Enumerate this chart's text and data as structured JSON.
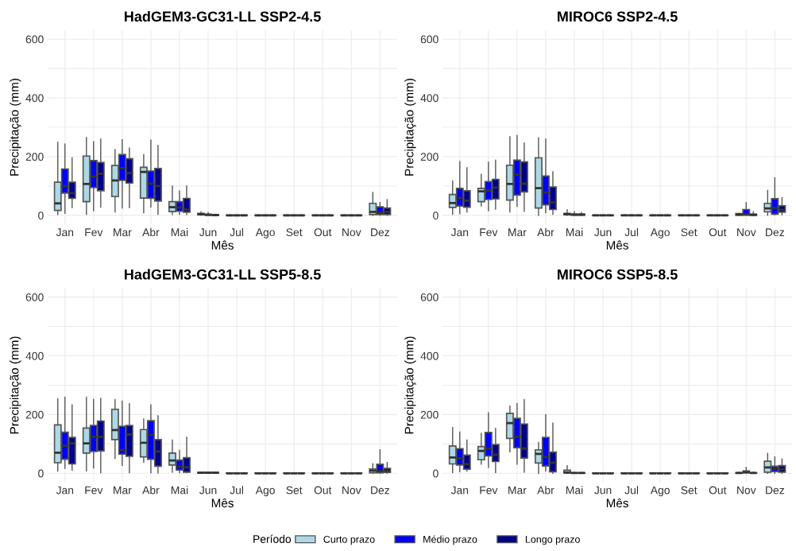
{
  "chart_data": [
    {
      "type": "box",
      "title": "HadGEM3-GC31-LL SSP2-4.5",
      "xlabel": "Mês",
      "ylabel": "Precipitação (mm)",
      "categories": [
        "Jan",
        "Fev",
        "Mar",
        "Abr",
        "Mai",
        "Jun",
        "Jul",
        "Ago",
        "Set",
        "Out",
        "Nov",
        "Dez"
      ],
      "ylim": [
        -30,
        630
      ],
      "yticks": [
        0,
        {
          "value": 100,
          "label": null
        },
        200,
        {
          "value": 300,
          "label": null
        },
        400,
        {
          "value": 500,
          "label": null
        },
        600
      ],
      "grid": true,
      "legend": "bottom",
      "legend_title": "Período",
      "series": [
        {
          "name": "Curto prazo",
          "color": "#add8e6",
          "boxes": [
            {
              "low": 3,
              "q1": 17,
              "median": 41,
              "q3": 113,
              "high": 249
            },
            {
              "low": 4,
              "q1": 47,
              "median": 107,
              "q3": 202,
              "high": 265
            },
            {
              "low": 12,
              "q1": 64,
              "median": 119,
              "q3": 170,
              "high": 224
            },
            {
              "low": 9,
              "q1": 59,
              "median": 148,
              "q3": 164,
              "high": 207
            },
            {
              "low": 3,
              "q1": 13,
              "median": 28,
              "q3": 47,
              "high": 100
            },
            {
              "low": 0,
              "q1": 2,
              "median": 4,
              "q3": 7,
              "high": 12
            },
            {
              "low": 0,
              "q1": 0,
              "median": 0,
              "q3": 1,
              "high": 2
            },
            {
              "low": 0,
              "q1": 0,
              "median": 0,
              "q3": 1,
              "high": 2
            },
            {
              "low": 0,
              "q1": 0,
              "median": 0,
              "q3": 1,
              "high": 2
            },
            {
              "low": 0,
              "q1": 0,
              "median": 0,
              "q3": 1,
              "high": 2
            },
            {
              "low": 0,
              "q1": 0,
              "median": 0,
              "q3": 1,
              "high": 2
            },
            {
              "low": 0,
              "q1": 3,
              "median": 12,
              "q3": 41,
              "high": 78
            }
          ]
        },
        {
          "name": "Médio prazo",
          "color": "#0000ff",
          "boxes": [
            {
              "low": 7,
              "q1": 76,
              "median": 100,
              "q3": 158,
              "high": 243
            },
            {
              "low": 16,
              "q1": 95,
              "median": 132,
              "q3": 187,
              "high": 251
            },
            {
              "low": 25,
              "q1": 119,
              "median": 161,
              "q3": 207,
              "high": 258
            },
            {
              "low": 29,
              "q1": 58,
              "median": 108,
              "q3": 151,
              "high": 256
            },
            {
              "low": 4,
              "q1": 14,
              "median": 27,
              "q3": 47,
              "high": 83
            },
            {
              "low": 0,
              "q1": 1,
              "median": 2,
              "q3": 4,
              "high": 10
            },
            {
              "low": 0,
              "q1": 0,
              "median": 0,
              "q3": 1,
              "high": 2
            },
            {
              "low": 0,
              "q1": 0,
              "median": 0,
              "q3": 1,
              "high": 2
            },
            {
              "low": 0,
              "q1": 0,
              "median": 0,
              "q3": 1,
              "high": 2
            },
            {
              "low": 0,
              "q1": 0,
              "median": 0,
              "q3": 1,
              "high": 2
            },
            {
              "low": 0,
              "q1": 0,
              "median": 0,
              "q3": 1,
              "high": 2
            },
            {
              "low": 0,
              "q1": 3,
              "median": 9,
              "q3": 29,
              "high": 44
            }
          ]
        },
        {
          "name": "Longo prazo",
          "color": "#00008b",
          "boxes": [
            {
              "low": 27,
              "q1": 58,
              "median": 76,
              "q3": 113,
              "high": 196
            },
            {
              "low": 28,
              "q1": 84,
              "median": 142,
              "q3": 180,
              "high": 260
            },
            {
              "low": 27,
              "q1": 110,
              "median": 144,
              "q3": 193,
              "high": 229
            },
            {
              "low": 4,
              "q1": 49,
              "median": 100,
              "q3": 160,
              "high": 238
            },
            {
              "low": 3,
              "q1": 11,
              "median": 20,
              "q3": 58,
              "high": 100
            },
            {
              "low": 0,
              "q1": 0,
              "median": 1,
              "q3": 3,
              "high": 4
            },
            {
              "low": 0,
              "q1": 0,
              "median": 0,
              "q3": 1,
              "high": 2
            },
            {
              "low": 0,
              "q1": 0,
              "median": 0,
              "q3": 1,
              "high": 2
            },
            {
              "low": 0,
              "q1": 0,
              "median": 0,
              "q3": 1,
              "high": 2
            },
            {
              "low": 0,
              "q1": 0,
              "median": 0,
              "q3": 1,
              "high": 2
            },
            {
              "low": 0,
              "q1": 0,
              "median": 0,
              "q3": 1,
              "high": 2
            },
            {
              "low": 0,
              "q1": 3,
              "median": 12,
              "q3": 25,
              "high": 54
            }
          ]
        }
      ]
    },
    {
      "type": "box",
      "title": "MIROC6 SSP2-4.5",
      "xlabel": "Mês",
      "ylabel": "Precipitação (mm)",
      "categories": [
        "Jan",
        "Fev",
        "Mar",
        "Abr",
        "Mai",
        "Jun",
        "Jul",
        "Ago",
        "Set",
        "Out",
        "Nov",
        "Dez"
      ],
      "ylim": [
        -30,
        630
      ],
      "yticks": [
        0,
        {
          "value": 100,
          "label": null
        },
        200,
        {
          "value": 300,
          "label": null
        },
        400,
        {
          "value": 500,
          "label": null
        },
        600
      ],
      "grid": true,
      "series": [
        {
          "color": "#add8e6",
          "boxes": [
            {
              "low": 4,
              "q1": 27,
              "median": 42,
              "q3": 71,
              "high": 117
            },
            {
              "low": 32,
              "q1": 47,
              "median": 82,
              "q3": 92,
              "high": 140
            },
            {
              "low": 12,
              "q1": 52,
              "median": 107,
              "q3": 171,
              "high": 268
            },
            {
              "low": 0,
              "q1": 25,
              "median": 93,
              "q3": 196,
              "high": 264
            },
            {
              "low": 0,
              "q1": 2,
              "median": 4,
              "q3": 7,
              "high": 19
            },
            {
              "low": 0,
              "q1": 0,
              "median": 0,
              "q3": 1,
              "high": 2
            },
            {
              "low": 0,
              "q1": 0,
              "median": 0,
              "q3": 1,
              "high": 2
            },
            {
              "low": 0,
              "q1": 0,
              "median": 0,
              "q3": 1,
              "high": 2
            },
            {
              "low": 0,
              "q1": 0,
              "median": 0,
              "q3": 1,
              "high": 2
            },
            {
              "low": 0,
              "q1": 0,
              "median": 0,
              "q3": 1,
              "high": 2
            },
            {
              "low": 0,
              "q1": 1,
              "median": 3,
              "q3": 6,
              "high": 7
            },
            {
              "low": 0,
              "q1": 12,
              "median": 24,
              "q3": 41,
              "high": 85
            }
          ]
        },
        {
          "color": "#0000ff",
          "boxes": [
            {
              "low": 6,
              "q1": 32,
              "median": 59,
              "q3": 92,
              "high": 183
            },
            {
              "low": 16,
              "q1": 54,
              "median": 85,
              "q3": 115,
              "high": 181
            },
            {
              "low": 31,
              "q1": 69,
              "median": 139,
              "q3": 188,
              "high": 272
            },
            {
              "low": 9,
              "q1": 36,
              "median": 78,
              "q3": 134,
              "high": 260
            },
            {
              "low": 0,
              "q1": 1,
              "median": 3,
              "q3": 4,
              "high": 13
            },
            {
              "low": 0,
              "q1": 0,
              "median": 0,
              "q3": 1,
              "high": 2
            },
            {
              "low": 0,
              "q1": 0,
              "median": 0,
              "q3": 1,
              "high": 2
            },
            {
              "low": 0,
              "q1": 0,
              "median": 0,
              "q3": 1,
              "high": 2
            },
            {
              "low": 0,
              "q1": 0,
              "median": 0,
              "q3": 1,
              "high": 2
            },
            {
              "low": 0,
              "q1": 0,
              "median": 0,
              "q3": 1,
              "high": 2
            },
            {
              "low": 0,
              "q1": 1,
              "median": 4,
              "q3": 20,
              "high": 43
            },
            {
              "low": 2,
              "q1": 4,
              "median": 26,
              "q3": 57,
              "high": 128
            }
          ]
        },
        {
          "color": "#00008b",
          "boxes": [
            {
              "low": 12,
              "q1": 28,
              "median": 50,
              "q3": 84,
              "high": 162
            },
            {
              "low": 21,
              "q1": 56,
              "median": 95,
              "q3": 123,
              "high": 188
            },
            {
              "low": 14,
              "q1": 80,
              "median": 108,
              "q3": 182,
              "high": 246
            },
            {
              "low": 4,
              "q1": 20,
              "median": 44,
              "q3": 97,
              "high": 149
            },
            {
              "low": 0,
              "q1": 1,
              "median": 3,
              "q3": 4,
              "high": 10
            },
            {
              "low": 0,
              "q1": 0,
              "median": 0,
              "q3": 1,
              "high": 2
            },
            {
              "low": 0,
              "q1": 0,
              "median": 0,
              "q3": 1,
              "high": 2
            },
            {
              "low": 0,
              "q1": 0,
              "median": 0,
              "q3": 1,
              "high": 2
            },
            {
              "low": 0,
              "q1": 0,
              "median": 0,
              "q3": 1,
              "high": 2
            },
            {
              "low": 0,
              "q1": 0,
              "median": 0,
              "q3": 1,
              "high": 2
            },
            {
              "low": 0,
              "q1": 0,
              "median": 2,
              "q3": 4,
              "high": 13
            },
            {
              "low": 2,
              "q1": 11,
              "median": 19,
              "q3": 33,
              "high": 60
            }
          ]
        }
      ]
    },
    {
      "type": "box",
      "title": "HadGEM3-GC31-LL SSP5-8.5",
      "xlabel": "Mês",
      "ylabel": "Precipitação (mm)",
      "categories": [
        "Jan",
        "Fev",
        "Mar",
        "Abr",
        "Mai",
        "Jun",
        "Jul",
        "Ago",
        "Set",
        "Out",
        "Nov",
        "Dez"
      ],
      "ylim": [
        -30,
        630
      ],
      "yticks": [
        0,
        {
          "value": 100,
          "label": null
        },
        200,
        {
          "value": 300,
          "label": null
        },
        400,
        {
          "value": 500,
          "label": null
        },
        600
      ],
      "grid": true,
      "series": [
        {
          "color": "#add8e6",
          "boxes": [
            {
              "low": 8,
              "q1": 36,
              "median": 70,
              "q3": 165,
              "high": 253
            },
            {
              "low": 8,
              "q1": 69,
              "median": 102,
              "q3": 154,
              "high": 259
            },
            {
              "low": 51,
              "q1": 115,
              "median": 147,
              "q3": 218,
              "high": 251
            },
            {
              "low": 38,
              "q1": 56,
              "median": 104,
              "q3": 149,
              "high": 185
            },
            {
              "low": 4,
              "q1": 28,
              "median": 44,
              "q3": 69,
              "high": 113
            },
            {
              "low": 0,
              "q1": 1,
              "median": 2,
              "q3": 3,
              "high": 4
            },
            {
              "low": 0,
              "q1": 0,
              "median": 0,
              "q3": 1,
              "high": 2
            },
            {
              "low": 0,
              "q1": 0,
              "median": 0,
              "q3": 1,
              "high": 2
            },
            {
              "low": 0,
              "q1": 0,
              "median": 0,
              "q3": 1,
              "high": 2
            },
            {
              "low": 0,
              "q1": 0,
              "median": 0,
              "q3": 1,
              "high": 2
            },
            {
              "low": 0,
              "q1": 0,
              "median": 0,
              "q3": 1,
              "high": 2
            },
            {
              "low": 0,
              "q1": 2,
              "median": 9,
              "q3": 15,
              "high": 33
            }
          ]
        },
        {
          "color": "#0000ff",
          "boxes": [
            {
              "low": 17,
              "q1": 48,
              "median": 94,
              "q3": 140,
              "high": 259
            },
            {
              "low": 18,
              "q1": 74,
              "median": 124,
              "q3": 163,
              "high": 251
            },
            {
              "low": 27,
              "q1": 65,
              "median": 79,
              "q3": 160,
              "high": 246
            },
            {
              "low": 2,
              "q1": 48,
              "median": 131,
              "q3": 179,
              "high": 233
            },
            {
              "low": 2,
              "q1": 11,
              "median": 23,
              "q3": 45,
              "high": 78
            },
            {
              "low": 0,
              "q1": 1,
              "median": 2,
              "q3": 3,
              "high": 4
            },
            {
              "low": 0,
              "q1": 0,
              "median": 0,
              "q3": 1,
              "high": 2
            },
            {
              "low": 0,
              "q1": 0,
              "median": 0,
              "q3": 1,
              "high": 2
            },
            {
              "low": 0,
              "q1": 0,
              "median": 0,
              "q3": 1,
              "high": 2
            },
            {
              "low": 0,
              "q1": 0,
              "median": 0,
              "q3": 1,
              "high": 2
            },
            {
              "low": 0,
              "q1": 0,
              "median": 0,
              "q3": 1,
              "high": 2
            },
            {
              "low": 0,
              "q1": 2,
              "median": 7,
              "q3": 31,
              "high": 80
            }
          ]
        },
        {
          "color": "#00008b",
          "boxes": [
            {
              "low": 11,
              "q1": 32,
              "median": 102,
              "q3": 122,
              "high": 233
            },
            {
              "low": 2,
              "q1": 76,
              "median": 124,
              "q3": 178,
              "high": 255
            },
            {
              "low": 2,
              "q1": 58,
              "median": 132,
              "q3": 163,
              "high": 237
            },
            {
              "low": 1,
              "q1": 24,
              "median": 74,
              "q3": 115,
              "high": 196
            },
            {
              "low": 2,
              "q1": 4,
              "median": 21,
              "q3": 53,
              "high": 123
            },
            {
              "low": 0,
              "q1": 1,
              "median": 2,
              "q3": 3,
              "high": 4
            },
            {
              "low": 0,
              "q1": 0,
              "median": 0,
              "q3": 1,
              "high": 2
            },
            {
              "low": 0,
              "q1": 0,
              "median": 0,
              "q3": 1,
              "high": 2
            },
            {
              "low": 0,
              "q1": 0,
              "median": 0,
              "q3": 1,
              "high": 2
            },
            {
              "low": 0,
              "q1": 0,
              "median": 0,
              "q3": 1,
              "high": 2
            },
            {
              "low": 0,
              "q1": 0,
              "median": 0,
              "q3": 1,
              "high": 2
            },
            {
              "low": 0,
              "q1": 3,
              "median": 9,
              "q3": 17,
              "high": 37
            }
          ]
        }
      ]
    },
    {
      "type": "box",
      "title": "MIROC6 SSP5-8.5",
      "xlabel": "Mês",
      "ylabel": "Precipitação (mm)",
      "categories": [
        "Jan",
        "Fev",
        "Mar",
        "Abr",
        "Mai",
        "Jun",
        "Jul",
        "Ago",
        "Set",
        "Out",
        "Nov",
        "Dez"
      ],
      "ylim": [
        -30,
        630
      ],
      "yticks": [
        0,
        {
          "value": 100,
          "label": null
        },
        200,
        {
          "value": 300,
          "label": null
        },
        400,
        {
          "value": 500,
          "label": null
        },
        600
      ],
      "grid": true,
      "series": [
        {
          "color": "#add8e6",
          "boxes": [
            {
              "low": 3,
              "q1": 32,
              "median": 54,
              "q3": 93,
              "high": 156
            },
            {
              "low": 31,
              "q1": 46,
              "median": 76,
              "q3": 91,
              "high": 136
            },
            {
              "low": 73,
              "q1": 119,
              "median": 171,
              "q3": 204,
              "high": 229
            },
            {
              "low": 0,
              "q1": 35,
              "median": 66,
              "q3": 80,
              "high": 105
            },
            {
              "low": 0,
              "q1": 1,
              "median": 3,
              "q3": 11,
              "high": 26
            },
            {
              "low": 0,
              "q1": 0,
              "median": 0,
              "q3": 1,
              "high": 2
            },
            {
              "low": 0,
              "q1": 0,
              "median": 0,
              "q3": 1,
              "high": 2
            },
            {
              "low": 0,
              "q1": 0,
              "median": 0,
              "q3": 1,
              "high": 2
            },
            {
              "low": 0,
              "q1": 0,
              "median": 0,
              "q3": 1,
              "high": 2
            },
            {
              "low": 0,
              "q1": 0,
              "median": 0,
              "q3": 1,
              "high": 2
            },
            {
              "low": 0,
              "q1": 0,
              "median": 1,
              "q3": 2,
              "high": 4
            },
            {
              "low": 0,
              "q1": 4,
              "median": 20,
              "q3": 41,
              "high": 68
            }
          ]
        },
        {
          "color": "#0000ff",
          "boxes": [
            {
              "low": 6,
              "q1": 28,
              "median": 51,
              "q3": 84,
              "high": 140
            },
            {
              "low": 20,
              "q1": 59,
              "median": 84,
              "q3": 139,
              "high": 206
            },
            {
              "low": 31,
              "q1": 87,
              "median": 124,
              "q3": 187,
              "high": 238
            },
            {
              "low": 8,
              "q1": 25,
              "median": 55,
              "q3": 122,
              "high": 199
            },
            {
              "low": 0,
              "q1": 0,
              "median": 1,
              "q3": 2,
              "high": 3
            },
            {
              "low": 0,
              "q1": 0,
              "median": 0,
              "q3": 1,
              "high": 2
            },
            {
              "low": 0,
              "q1": 0,
              "median": 0,
              "q3": 1,
              "high": 2
            },
            {
              "low": 0,
              "q1": 0,
              "median": 0,
              "q3": 1,
              "high": 2
            },
            {
              "low": 0,
              "q1": 0,
              "median": 0,
              "q3": 1,
              "high": 2
            },
            {
              "low": 0,
              "q1": 0,
              "median": 0,
              "q3": 1,
              "high": 2
            },
            {
              "low": 0,
              "q1": 2,
              "median": 4,
              "q3": 8,
              "high": 20
            },
            {
              "low": 0,
              "q1": 6,
              "median": 16,
              "q3": 24,
              "high": 56
            }
          ]
        },
        {
          "color": "#00008b",
          "boxes": [
            {
              "low": 8,
              "q1": 14,
              "median": 31,
              "q3": 62,
              "high": 113
            },
            {
              "low": 3,
              "q1": 40,
              "median": 63,
              "q3": 98,
              "high": 153
            },
            {
              "low": 4,
              "q1": 52,
              "median": 84,
              "q3": 168,
              "high": 251
            },
            {
              "low": 0,
              "q1": 5,
              "median": 36,
              "q3": 72,
              "high": 171
            },
            {
              "low": 0,
              "q1": 0,
              "median": 1,
              "q3": 2,
              "high": 3
            },
            {
              "low": 0,
              "q1": 0,
              "median": 0,
              "q3": 1,
              "high": 2
            },
            {
              "low": 0,
              "q1": 0,
              "median": 0,
              "q3": 1,
              "high": 2
            },
            {
              "low": 0,
              "q1": 0,
              "median": 0,
              "q3": 1,
              "high": 2
            },
            {
              "low": 0,
              "q1": 0,
              "median": 0,
              "q3": 1,
              "high": 2
            },
            {
              "low": 0,
              "q1": 0,
              "median": 0,
              "q3": 1,
              "high": 2
            },
            {
              "low": 0,
              "q1": 0,
              "median": 1,
              "q3": 2,
              "high": 4
            },
            {
              "low": 0,
              "q1": 4,
              "median": 13,
              "q3": 26,
              "high": 49
            }
          ]
        }
      ]
    }
  ]
}
